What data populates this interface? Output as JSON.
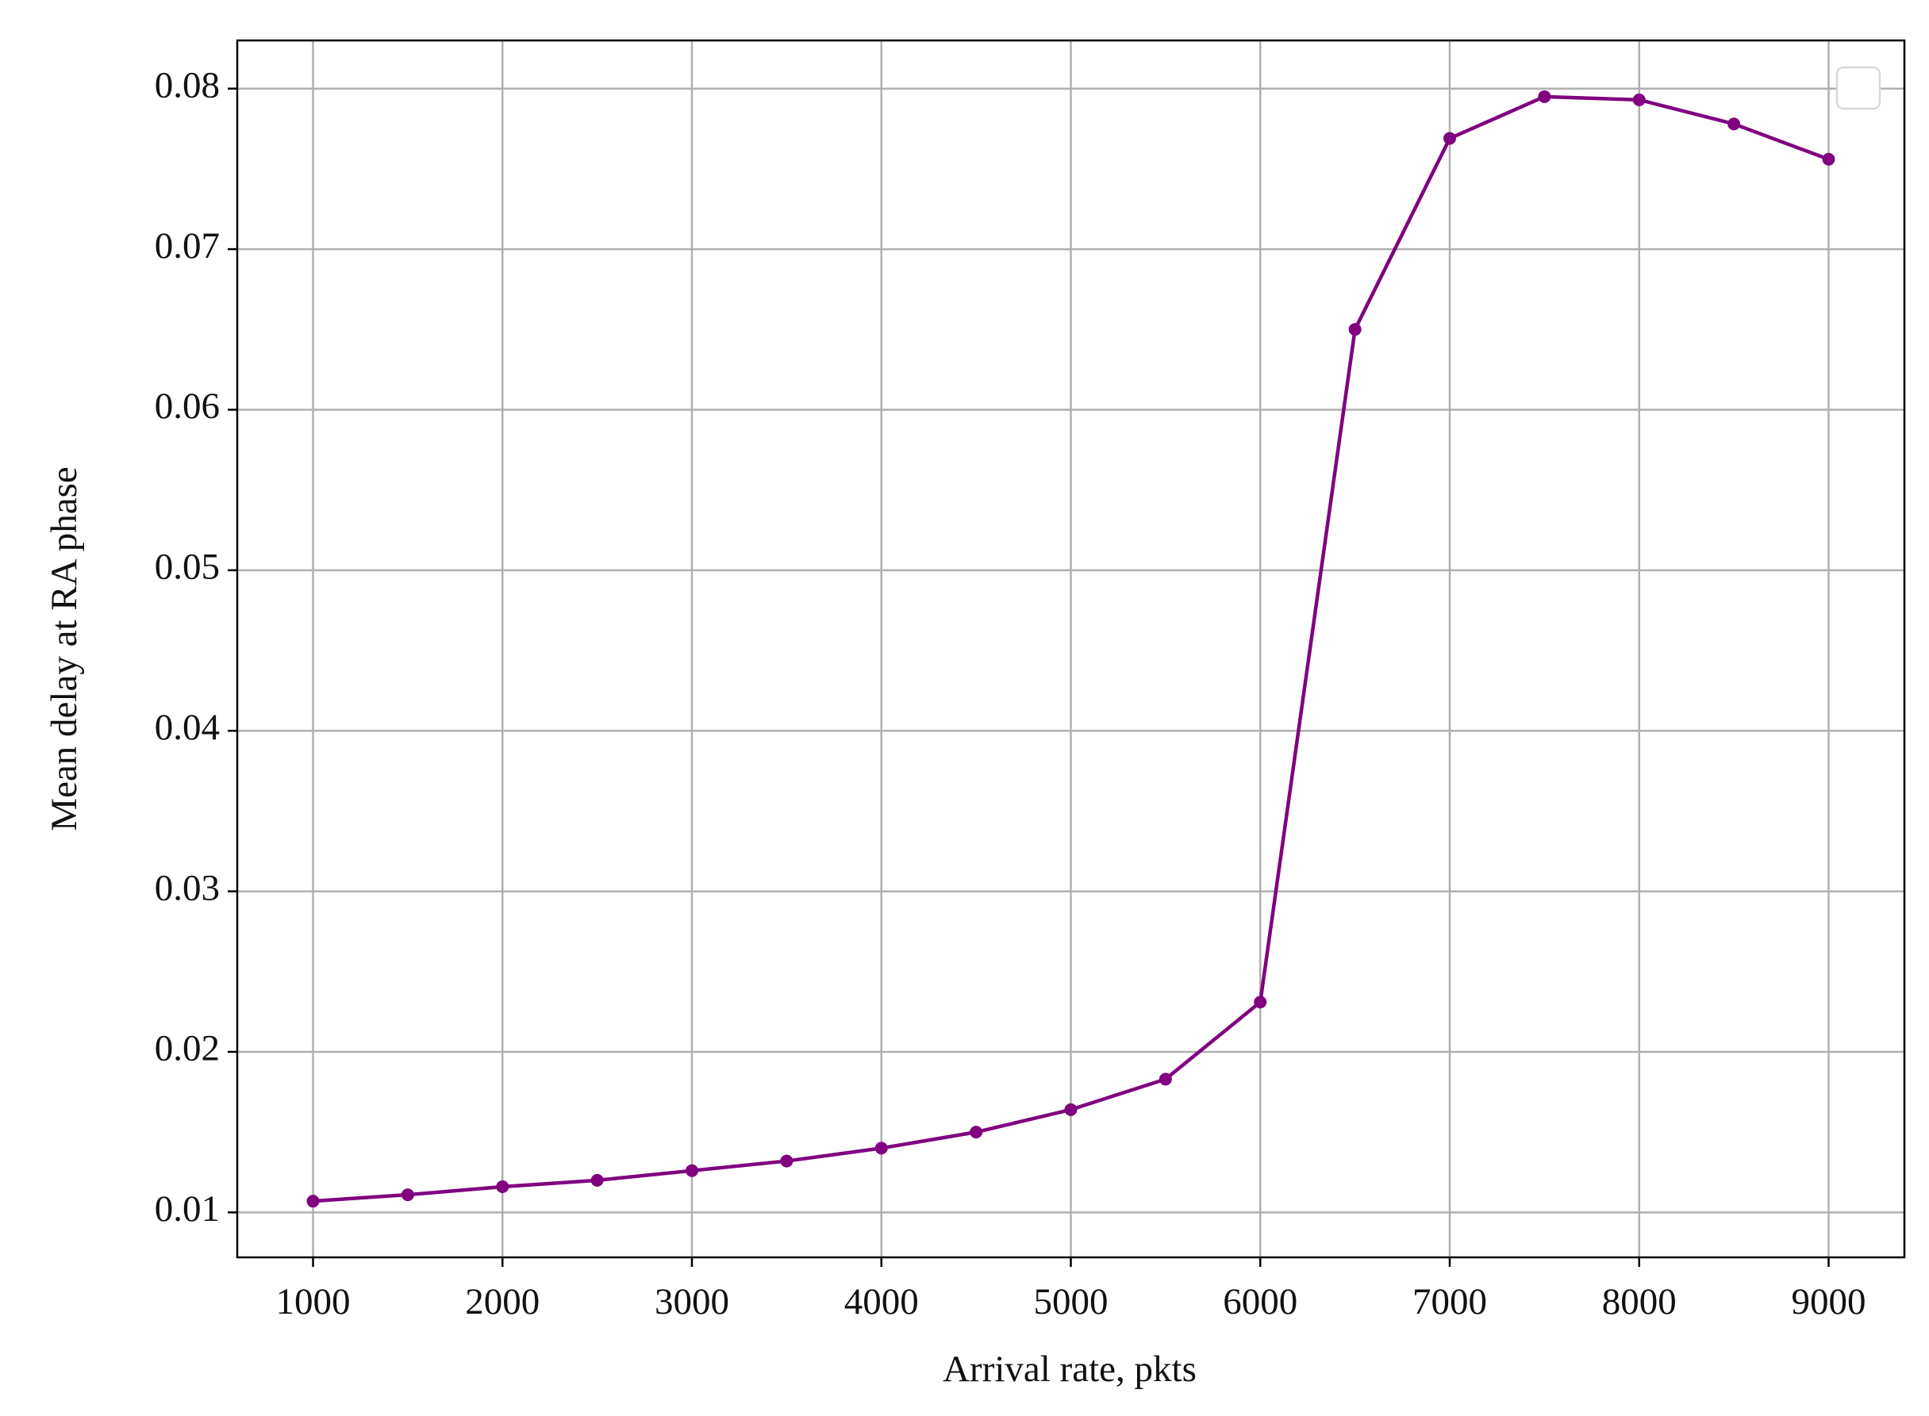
{
  "chart_data": {
    "type": "line",
    "x_label": "Arrival rate, pkts",
    "y_label": "Mean delay at RA phase",
    "x": [
      1000,
      1500,
      2000,
      2500,
      3000,
      3500,
      4000,
      4500,
      5000,
      5500,
      6000,
      6500,
      7000,
      7500,
      8000,
      8500,
      9000
    ],
    "series": [
      {
        "color": "#800080",
        "values": [
          0.0107,
          0.0111,
          0.0116,
          0.012,
          0.0126,
          0.0132,
          0.014,
          0.015,
          0.0164,
          0.0183,
          0.0231,
          0.065,
          0.0769,
          0.0795,
          0.0793,
          0.0778,
          0.0756
        ]
      }
    ],
    "xlim": [
      600,
      9400
    ],
    "ylim": [
      0.0072,
      0.083
    ],
    "xticks": [
      1000,
      2000,
      3000,
      4000,
      5000,
      6000,
      7000,
      8000,
      9000
    ],
    "yticks": [
      0.01,
      0.02,
      0.03,
      0.04,
      0.05,
      0.06,
      0.07,
      0.08
    ],
    "grid": true,
    "legend": "upper right"
  }
}
